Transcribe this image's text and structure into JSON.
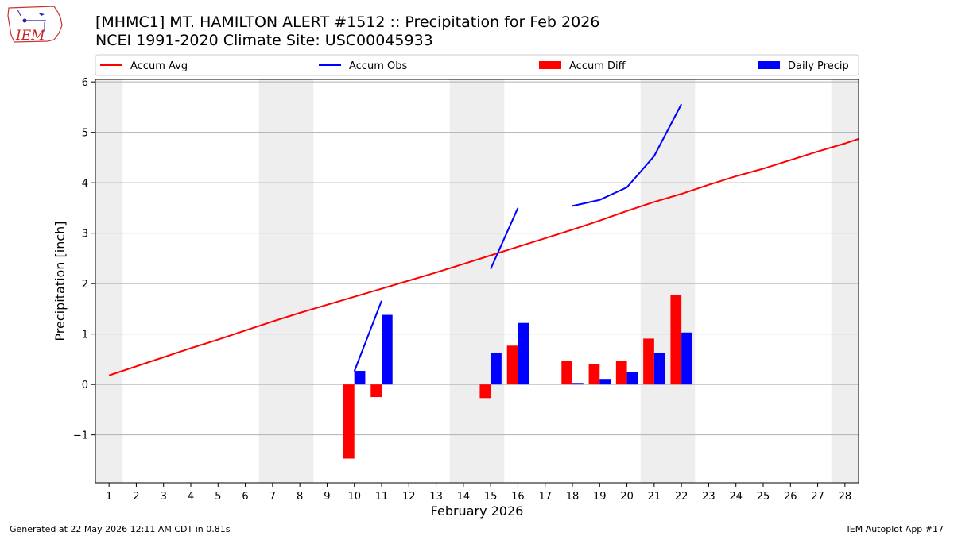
{
  "header": {
    "title_line1": "[MHMC1] MT. HAMILTON ALERT #1512 :: Precipitation for Feb 2026",
    "title_line2": "NCEI 1991-2020 Climate Site: USC00045933"
  },
  "logo": {
    "text": "IEM",
    "icon": "iem-iowa-logo"
  },
  "footer": {
    "generated": "Generated at 22 May 2026 12:11 AM CDT in 0.81s",
    "app": "IEM Autoplot App #17"
  },
  "chart_data": {
    "type": "bar",
    "xlabel": "February 2026",
    "ylabel": "Precipitation [inch]",
    "xlim": [
      0.5,
      28.5
    ],
    "ylim": [
      -1.95,
      6.05
    ],
    "yticks": [
      -1,
      0,
      1,
      2,
      3,
      4,
      5,
      6
    ],
    "grid": "y",
    "legend_placement": "top, above plot",
    "weekend_shading": [
      [
        0.5,
        1.5
      ],
      [
        6.5,
        8.5
      ],
      [
        13.5,
        15.5
      ],
      [
        20.5,
        22.5
      ],
      [
        27.5,
        28.5
      ]
    ],
    "days": [
      1,
      2,
      3,
      4,
      5,
      6,
      7,
      8,
      9,
      10,
      11,
      12,
      13,
      14,
      15,
      16,
      17,
      18,
      19,
      20,
      21,
      22,
      23,
      24,
      25,
      26,
      27,
      28
    ],
    "series": [
      {
        "name": "Accum Avg",
        "kind": "line",
        "color": "#ff0000",
        "x": [
          1,
          2,
          3,
          4,
          5,
          6,
          7,
          8,
          9,
          10,
          11,
          12,
          13,
          14,
          15,
          16,
          17,
          18,
          19,
          20,
          21,
          22,
          23,
          24,
          25,
          26,
          27,
          28,
          28.5
        ],
        "values": [
          0.18,
          0.36,
          0.54,
          0.72,
          0.89,
          1.07,
          1.25,
          1.42,
          1.58,
          1.74,
          1.9,
          2.06,
          2.22,
          2.39,
          2.56,
          2.73,
          2.9,
          3.07,
          3.25,
          3.44,
          3.62,
          3.78,
          3.96,
          4.13,
          4.28,
          4.45,
          4.62,
          4.78,
          4.87
        ]
      },
      {
        "name": "Accum Obs",
        "kind": "line",
        "color": "#0000ff",
        "segments": [
          {
            "x": [
              10,
              11
            ],
            "values": [
              0.26,
              1.66
            ]
          },
          {
            "x": [
              15,
              16
            ],
            "values": [
              2.29,
              3.5
            ]
          },
          {
            "x": [
              18,
              19,
              20,
              21,
              22
            ],
            "values": [
              3.54,
              3.66,
              3.91,
              4.53,
              5.56
            ]
          }
        ]
      },
      {
        "name": "Accum Diff",
        "kind": "bar",
        "color": "#ff0000",
        "x": [
          10,
          11,
          15,
          16,
          18,
          19,
          20,
          21,
          22
        ],
        "values": [
          -1.47,
          -0.25,
          -0.27,
          0.77,
          0.46,
          0.4,
          0.46,
          0.91,
          1.78
        ]
      },
      {
        "name": "Daily Precip",
        "kind": "bar",
        "color": "#0000ff",
        "x": [
          10,
          11,
          15,
          16,
          18,
          19,
          20,
          21,
          22
        ],
        "values": [
          0.27,
          1.38,
          0.62,
          1.22,
          0.03,
          0.11,
          0.24,
          0.62,
          1.03
        ]
      }
    ]
  }
}
